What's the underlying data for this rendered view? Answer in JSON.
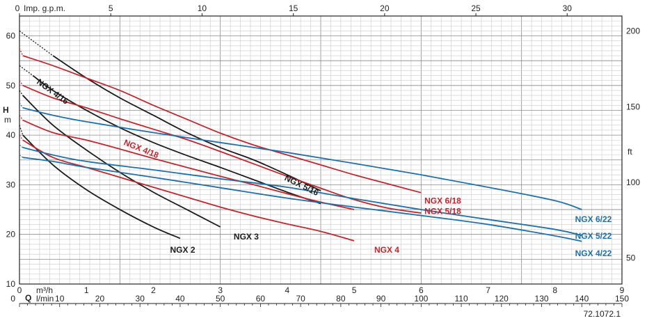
{
  "chart_data": {
    "type": "line",
    "axes": {
      "bottom_m3h": {
        "unit_label": "m³/h",
        "ticks": [
          "0",
          "1",
          "2",
          "3",
          "4",
          "5",
          "6",
          "7",
          "8",
          "9"
        ],
        "range": [
          0,
          9
        ]
      },
      "bottom_lmin": {
        "unit_label": "l/min",
        "ticks": [
          "0",
          "10",
          "20",
          "30",
          "40",
          "50",
          "60",
          "70",
          "80",
          "90",
          "100",
          "110",
          "120",
          "130",
          "140",
          "150"
        ],
        "range": [
          0,
          150
        ]
      },
      "top_gpm": {
        "unit_label": "Imp. g.p.m.",
        "ticks": [
          "0",
          "5",
          "10",
          "15",
          "20",
          "25",
          "30"
        ],
        "range": [
          0,
          33
        ]
      },
      "left_h": {
        "label": "H",
        "unit": "m",
        "ticks": [
          "10",
          "20",
          "30",
          "40",
          "50",
          "60"
        ],
        "range": [
          10,
          64
        ]
      },
      "right_ft": {
        "unit": "ft",
        "ticks": [
          "50",
          "100",
          "150",
          "200"
        ]
      },
      "grid": true,
      "q_symbol": "Q"
    },
    "series": [
      {
        "name": "NGX 2",
        "color": "#1a1a1a",
        "points": [
          [
            0.05,
            40.0
          ],
          [
            0.5,
            34.0
          ],
          [
            1.0,
            29.0
          ],
          [
            1.5,
            25.0
          ],
          [
            2.0,
            21.5
          ],
          [
            2.4,
            19.2
          ]
        ],
        "dashed_to": [
          0.0,
          42.0
        ],
        "label_at": [
          2.25,
          16.3
        ]
      },
      {
        "name": "NGX 3",
        "color": "#1a1a1a",
        "points": [
          [
            0.05,
            48.0
          ],
          [
            0.5,
            42.0
          ],
          [
            1.0,
            37.0
          ],
          [
            1.5,
            32.5
          ],
          [
            2.0,
            28.5
          ],
          [
            2.5,
            25.0
          ],
          [
            3.0,
            21.5
          ]
        ],
        "dashed_to": [
          0.0,
          49.0
        ],
        "label_at": [
          3.2,
          19.0
        ]
      },
      {
        "name": "NGX 4",
        "color": "#c0262e",
        "points": [
          [
            0.05,
            39.0
          ],
          [
            0.5,
            35.5
          ],
          [
            1.0,
            33.5
          ],
          [
            1.5,
            31.5
          ],
          [
            2.0,
            29.5
          ],
          [
            2.5,
            27.5
          ],
          [
            3.0,
            25.5
          ],
          [
            3.5,
            23.7
          ],
          [
            4.0,
            22.1
          ],
          [
            4.5,
            20.6
          ],
          [
            5.0,
            18.7
          ]
        ],
        "dashed_to": [
          0.0,
          40.0
        ],
        "label_at": [
          5.3,
          16.3
        ]
      },
      {
        "name": "NGX 4/16",
        "color": "#1a1a1a",
        "points": [
          [
            0.2,
            52.0
          ],
          [
            0.5,
            49.0
          ],
          [
            1.0,
            45.0
          ],
          [
            1.5,
            41.5
          ],
          [
            2.0,
            38.5
          ],
          [
            2.5,
            35.9
          ],
          [
            3.0,
            33.5
          ],
          [
            3.5,
            31.0
          ],
          [
            4.0,
            28.5
          ],
          [
            4.5,
            26.2
          ]
        ],
        "dashed_to": [
          0.0,
          54.0
        ],
        "label_at": [
          0.25,
          50.5
        ],
        "label_rotate": 36
      },
      {
        "name": "NGX 5/16",
        "color": "#1a1a1a",
        "points": [
          [
            0.5,
            56.0
          ],
          [
            1.0,
            51.5
          ],
          [
            1.5,
            47.5
          ],
          [
            2.0,
            44.0
          ],
          [
            2.5,
            40.5
          ],
          [
            3.0,
            37.5
          ],
          [
            3.5,
            35.0
          ],
          [
            4.0,
            32.0
          ],
          [
            4.5,
            28.8
          ]
        ],
        "dashed_to": [
          0.0,
          61.0
        ],
        "label_at": [
          3.95,
          31.0
        ],
        "label_rotate": 26
      },
      {
        "name": "NGX 4/18",
        "color": "#c0262e",
        "points": [
          [
            0.05,
            43.0
          ],
          [
            0.5,
            40.5
          ],
          [
            1.0,
            39.0
          ],
          [
            1.5,
            37.2
          ],
          [
            2.0,
            35.3
          ],
          [
            2.5,
            33.5
          ],
          [
            3.0,
            31.7
          ],
          [
            3.5,
            30.0
          ],
          [
            4.0,
            28.2
          ],
          [
            4.5,
            26.5
          ],
          [
            5.0,
            25.0
          ]
        ],
        "dashed_to": [
          0.0,
          44.0
        ],
        "label_at": [
          1.55,
          38.1
        ],
        "label_rotate": 22
      },
      {
        "name": "NGX 5/18",
        "color": "#c0262e",
        "points": [
          [
            0.05,
            50.0
          ],
          [
            0.5,
            47.5
          ],
          [
            1.0,
            45.5
          ],
          [
            1.5,
            43.3
          ],
          [
            2.0,
            41.2
          ],
          [
            2.5,
            39.1
          ],
          [
            3.0,
            36.7
          ],
          [
            3.5,
            34.2
          ],
          [
            4.0,
            31.7
          ],
          [
            4.5,
            29.3
          ],
          [
            5.0,
            27.0
          ],
          [
            5.5,
            25.3
          ],
          [
            6.0,
            24.3
          ]
        ],
        "dashed_to": [
          0.0,
          51.0
        ],
        "label_at": [
          6.05,
          24.1
        ]
      },
      {
        "name": "NGX 6/18",
        "color": "#c0262e",
        "points": [
          [
            0.05,
            56.0
          ],
          [
            0.5,
            54.0
          ],
          [
            1.0,
            51.5
          ],
          [
            1.5,
            49.0
          ],
          [
            2.0,
            46.0
          ],
          [
            2.5,
            43.2
          ],
          [
            3.0,
            40.4
          ],
          [
            3.5,
            38.0
          ],
          [
            4.0,
            36.0
          ],
          [
            4.5,
            34.0
          ],
          [
            5.0,
            32.0
          ],
          [
            5.5,
            30.2
          ],
          [
            6.0,
            28.4
          ]
        ],
        "dashed_to": [
          0.0,
          57.5
        ],
        "label_at": [
          6.05,
          26.2
        ]
      },
      {
        "name": "NGX 4/22",
        "color": "#1f6fa8",
        "points": [
          [
            0.05,
            35.5
          ],
          [
            0.5,
            34.7
          ],
          [
            1.0,
            33.5
          ],
          [
            2.0,
            31.5
          ],
          [
            3.0,
            29.4
          ],
          [
            4.0,
            27.3
          ],
          [
            5.0,
            25.5
          ],
          [
            6.0,
            23.8
          ],
          [
            7.0,
            22.0
          ],
          [
            8.0,
            19.7
          ],
          [
            8.4,
            18.6
          ]
        ],
        "dashed_to": [
          0.0,
          36.0
        ],
        "label_at": [
          8.3,
          15.6
        ]
      },
      {
        "name": "NGX 5/22",
        "color": "#1f6fa8",
        "points": [
          [
            0.05,
            37.5
          ],
          [
            0.5,
            36.0
          ],
          [
            1.0,
            34.7
          ],
          [
            2.0,
            33.0
          ],
          [
            3.0,
            31.2
          ],
          [
            4.0,
            29.5
          ],
          [
            5.0,
            27.2
          ],
          [
            6.0,
            25.0
          ],
          [
            7.0,
            23.0
          ],
          [
            8.0,
            21.0
          ],
          [
            8.4,
            19.8
          ]
        ],
        "dashed_to": [
          0.0,
          38.0
        ],
        "label_at": [
          8.3,
          19.1
        ]
      },
      {
        "name": "NGX 6/22",
        "color": "#1f6fa8",
        "points": [
          [
            0.05,
            45.5
          ],
          [
            0.5,
            44.0
          ],
          [
            1.0,
            42.7
          ],
          [
            2.0,
            40.5
          ],
          [
            3.0,
            38.5
          ],
          [
            4.0,
            36.5
          ],
          [
            5.0,
            34.3
          ],
          [
            6.0,
            32.0
          ],
          [
            7.0,
            29.5
          ],
          [
            8.0,
            26.8
          ],
          [
            8.4,
            25.0
          ]
        ],
        "dashed_to": [
          0.0,
          46.5
        ],
        "label_at": [
          8.3,
          22.5
        ]
      }
    ],
    "footnote": "72.1072.1"
  }
}
